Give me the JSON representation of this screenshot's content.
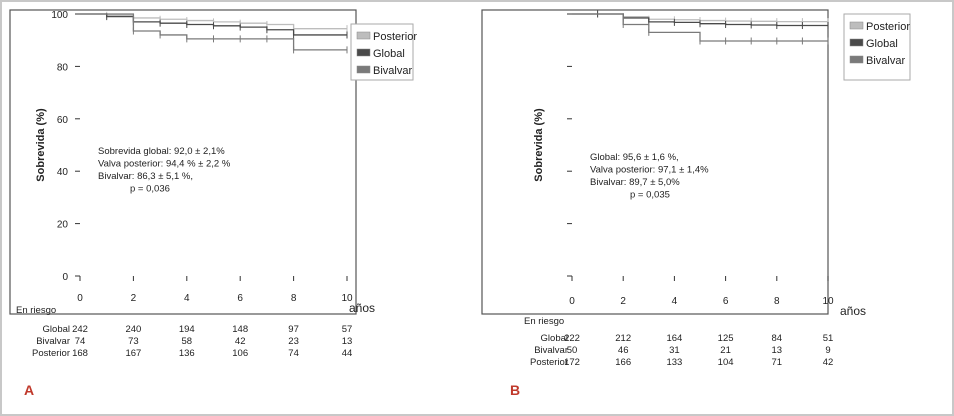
{
  "colors": {
    "posterior": "#bdbdbd",
    "global": "#4a4a4a",
    "bivalvar": "#7a7a7a",
    "panel_label": "#c0392b",
    "frame": "#c8c8c8"
  },
  "chart_data": [
    {
      "type": "line",
      "panel": "A",
      "ylabel": "Sobrevida (%)",
      "x_unit": "años",
      "xticks": [
        "0",
        "2",
        "4",
        "6",
        "8",
        "10"
      ],
      "yticks": [
        "0",
        "20",
        "40",
        "60",
        "80",
        "100"
      ],
      "xlim": [
        0,
        10
      ],
      "ylim": [
        0,
        100
      ],
      "grid": false,
      "legend_position": "right",
      "legend": [
        "Posterior",
        "Global",
        "Bivalvar"
      ],
      "annotation": [
        "Sobrevida  global: 92,0 ± 2,1%",
        "Valva posterior: 94,4 % ± 2,2 %",
        "Bivalvar:  86,3 ± 5,1 %,",
        "p = 0,036"
      ],
      "series": [
        {
          "name": "Posterior",
          "x": [
            0,
            1,
            2,
            3,
            4,
            5,
            6,
            7,
            8,
            10
          ],
          "y": [
            100,
            99.5,
            98.5,
            98,
            97.5,
            97,
            96.5,
            96,
            94.4,
            94.4
          ]
        },
        {
          "name": "Global",
          "x": [
            0,
            1,
            2,
            3,
            4,
            5,
            6,
            7,
            8,
            10
          ],
          "y": [
            100,
            99,
            97,
            96.5,
            96,
            95.5,
            95,
            94,
            92,
            92
          ]
        },
        {
          "name": "Bivalvar",
          "x": [
            0,
            2,
            3,
            4,
            5,
            6,
            7,
            8,
            10
          ],
          "y": [
            100,
            93.5,
            92,
            90.5,
            90.5,
            90.5,
            90.5,
            86.3,
            86.3
          ]
        }
      ],
      "risk_table": {
        "title": "En riesgo",
        "rows": [
          {
            "label": "Global",
            "values": [
              "242",
              "240",
              "194",
              "148",
              "97",
              "57"
            ]
          },
          {
            "label": "Bivalvar",
            "values": [
              "74",
              "73",
              "58",
              "42",
              "23",
              "13"
            ]
          },
          {
            "label": "Posterior",
            "values": [
              "168",
              "167",
              "136",
              "106",
              "74",
              "44"
            ]
          }
        ]
      }
    },
    {
      "type": "line",
      "panel": "B",
      "ylabel": "Sobrevida (%)",
      "x_unit": "años",
      "xticks": [
        "0",
        "2",
        "4",
        "6",
        "8",
        "10"
      ],
      "yticks": [],
      "xlim": [
        0,
        10
      ],
      "ylim": [
        0,
        100
      ],
      "grid": false,
      "legend_position": "right",
      "legend": [
        "Posterior",
        "Global",
        "Bivalvar"
      ],
      "annotation": [
        "Global: 95,6 ± 1,6 %,",
        "Valva  posterior: 97,1 ± 1,4%",
        "Bivalvar: 89,7 ± 5,0%",
        "p = 0,035"
      ],
      "series": [
        {
          "name": "Posterior",
          "x": [
            0,
            1,
            2,
            3,
            4,
            5,
            6,
            7,
            8,
            9,
            10
          ],
          "y": [
            100,
            100,
            99,
            98,
            97.8,
            97.5,
            97.3,
            97.2,
            97.1,
            97.1,
            97.1
          ]
        },
        {
          "name": "Global",
          "x": [
            0,
            1,
            2,
            3,
            4,
            5,
            6,
            7,
            8,
            9,
            10
          ],
          "y": [
            100,
            100,
            98.5,
            97,
            96.8,
            96.3,
            96,
            95.8,
            95.6,
            95.6,
            95.6
          ]
        },
        {
          "name": "Bivalvar",
          "x": [
            0,
            2,
            3,
            5,
            6,
            7,
            8,
            9,
            10
          ],
          "y": [
            100,
            96,
            93,
            89.7,
            89.7,
            89.7,
            89.7,
            89.7,
            89.7
          ]
        }
      ],
      "risk_table": {
        "title": "En riesgo",
        "rows": [
          {
            "label": "Global",
            "values": [
              "222",
              "212",
              "164",
              "125",
              "84",
              "51"
            ]
          },
          {
            "label": "Bivalvar",
            "values": [
              "50",
              "46",
              "31",
              "21",
              "13",
              "9"
            ]
          },
          {
            "label": "Posterior",
            "values": [
              "172",
              "166",
              "133",
              "104",
              "71",
              "42"
            ]
          }
        ]
      }
    }
  ]
}
